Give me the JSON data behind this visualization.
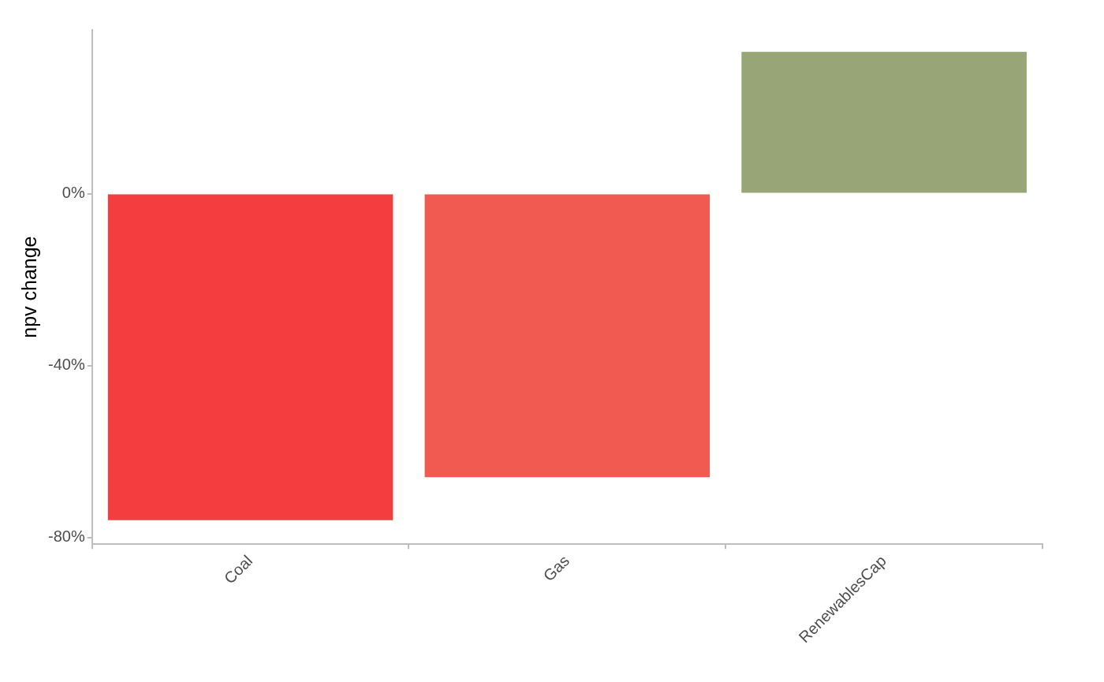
{
  "chart_data": {
    "type": "bar",
    "ylabel": "npv change",
    "categories": [
      "Coal",
      "Gas",
      "RenewablesCap"
    ],
    "values": [
      -76,
      -66,
      33
    ],
    "colors": [
      "#f43d3f",
      "#f05a50",
      "#97a577"
    ],
    "ylim": [
      -81.6,
      38.1
    ],
    "yticks": [
      {
        "value": -80,
        "label": "-80%"
      },
      {
        "value": -40,
        "label": "-40%"
      },
      {
        "value": 0,
        "label": "0%"
      }
    ],
    "grid": false,
    "legend": false
  }
}
